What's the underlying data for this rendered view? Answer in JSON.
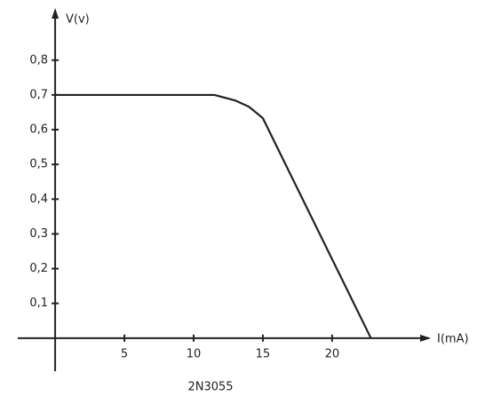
{
  "chart_data": {
    "type": "line",
    "title": "2N3055",
    "x_label": "I(mA)",
    "y_label": "V(v)",
    "series": [
      {
        "name": "2N3055",
        "color": "#222222",
        "x": [
          0,
          11.5,
          13,
          14,
          15,
          22.8
        ],
        "values": [
          0.7,
          0.7,
          0.684,
          0.666,
          0.633,
          0
        ]
      }
    ],
    "xlim": [
      -2.7,
      27
    ],
    "xticks": [
      5,
      10,
      15,
      20
    ],
    "ylim": [
      -0.095,
      0.94
    ],
    "yticks": [
      {
        "value": 0.1,
        "label": "0,1"
      },
      {
        "value": 0.2,
        "label": "0,2"
      },
      {
        "value": 0.3,
        "label": "0,3"
      },
      {
        "value": 0.4,
        "label": "0,4"
      },
      {
        "value": 0.5,
        "label": "0,5"
      },
      {
        "value": 0.6,
        "label": "0,6"
      },
      {
        "value": 0.7,
        "label": "0,7"
      },
      {
        "value": 0.8,
        "label": "0,8"
      }
    ],
    "grid": false
  }
}
